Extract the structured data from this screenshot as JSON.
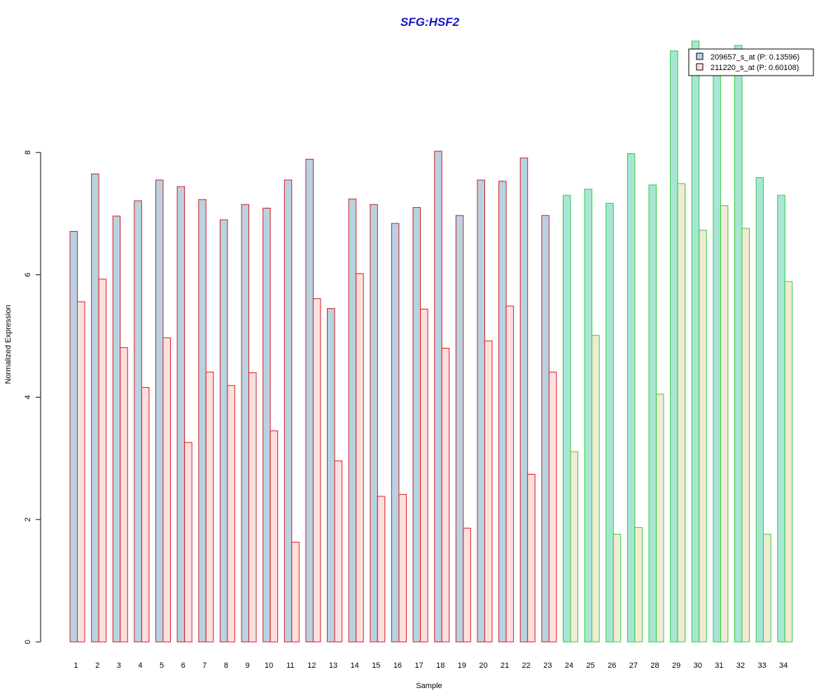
{
  "chart_data": {
    "type": "bar",
    "title": "SFG:HSF2",
    "xlabel": "Sample",
    "ylabel": "Normalized Expression",
    "ylim": [
      0,
      9.8
    ],
    "yticks": [
      0,
      2,
      4,
      6,
      8
    ],
    "categories": [
      "1",
      "2",
      "3",
      "4",
      "5",
      "6",
      "7",
      "8",
      "9",
      "10",
      "11",
      "12",
      "13",
      "14",
      "15",
      "16",
      "17",
      "18",
      "19",
      "20",
      "21",
      "22",
      "23",
      "24",
      "25",
      "26",
      "27",
      "28",
      "29",
      "30",
      "31",
      "32",
      "33",
      "34"
    ],
    "series": [
      {
        "name": "209657_s_at (P: 0.13596)",
        "values": [
          6.71,
          7.65,
          6.96,
          7.21,
          7.55,
          7.44,
          7.23,
          6.9,
          7.15,
          7.09,
          7.55,
          7.89,
          5.45,
          7.24,
          7.15,
          6.84,
          7.1,
          8.02,
          6.97,
          7.55,
          7.53,
          7.91,
          6.97,
          7.3,
          7.4,
          7.17,
          7.98,
          7.47,
          9.66,
          9.82,
          9.5,
          9.75,
          7.59,
          7.3
        ]
      },
      {
        "name": "211220_s_at (P: 0.60108)",
        "values": [
          5.56,
          5.93,
          4.81,
          4.16,
          4.97,
          3.26,
          4.41,
          4.19,
          4.4,
          3.45,
          1.63,
          5.61,
          2.96,
          6.02,
          2.38,
          2.41,
          5.44,
          4.8,
          1.86,
          4.92,
          5.49,
          2.74,
          4.41,
          3.11,
          5.01,
          1.76,
          1.87,
          4.05,
          7.49,
          6.73,
          7.13,
          6.76,
          1.76,
          5.89
        ]
      }
    ],
    "group_split_index": 23,
    "colors": {
      "title": "#1515c8",
      "group1_border": "#d71920",
      "group2_border": "#2ecc40",
      "group1_fill_a": "#b7d3e2",
      "group1_fill_b": "#fde0dd",
      "group2_fill_a": "#a8e6d4",
      "group2_fill_b": "#f1ebd3",
      "legend_fill_a": "#b7d3e2",
      "legend_fill_b": "#fde0dd",
      "axis": "#000000"
    },
    "legend_position": "top-right"
  }
}
